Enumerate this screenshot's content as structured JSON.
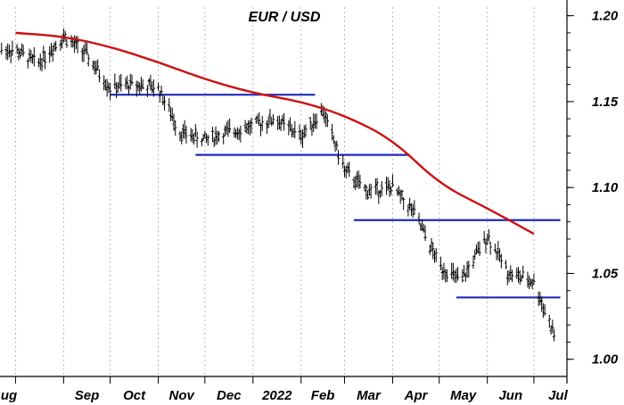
{
  "chart_data": {
    "type": "line",
    "title": "EUR / USD",
    "x_ticks": [
      "Aug",
      "Sep",
      "Oct",
      "Nov",
      "Dec",
      "2022",
      "Feb",
      "Mar",
      "Apr",
      "May",
      "Jun",
      "Jul"
    ],
    "y_ticks": [
      "1.20",
      "1.15",
      "1.10",
      "1.05",
      "1.00"
    ],
    "ylim": [
      0.99,
      1.205
    ],
    "grid": "vertical dashed at month boundaries",
    "series": [
      {
        "style": "ohlc-bars",
        "color": "#000000",
        "x": [
          "2021-08-01",
          "2021-08-15",
          "2021-09-01",
          "2021-09-15",
          "2021-10-01",
          "2021-10-15",
          "2021-11-01",
          "2021-11-15",
          "2021-12-01",
          "2021-12-15",
          "2022-01-01",
          "2022-01-15",
          "2022-02-01",
          "2022-02-15",
          "2022-03-01",
          "2022-03-15",
          "2022-04-01",
          "2022-04-15",
          "2022-05-01",
          "2022-05-15",
          "2022-06-01",
          "2022-06-15",
          "2022-07-01",
          "2022-07-15"
        ],
        "values": [
          1.18,
          1.172,
          1.188,
          1.178,
          1.158,
          1.16,
          1.158,
          1.132,
          1.128,
          1.132,
          1.136,
          1.14,
          1.13,
          1.145,
          1.11,
          1.098,
          1.1,
          1.085,
          1.055,
          1.045,
          1.072,
          1.05,
          1.045,
          1.012
        ]
      },
      {
        "style": "moving-average",
        "color": "#cc1111",
        "x": [
          "2021-08-01",
          "2021-09-01",
          "2021-10-01",
          "2021-11-01",
          "2021-12-01",
          "2022-01-01",
          "2022-02-01",
          "2022-03-01",
          "2022-04-01",
          "2022-05-01",
          "2022-06-01",
          "2022-07-01"
        ],
        "values": [
          1.19,
          1.188,
          1.182,
          1.173,
          1.163,
          1.155,
          1.15,
          1.142,
          1.128,
          1.102,
          1.088,
          1.073
        ]
      }
    ],
    "levels": [
      {
        "color": "#1f2ab8",
        "y": 1.154,
        "x_start": "2021-10-01",
        "x_end": "2022-02-10"
      },
      {
        "color": "#1f2ab8",
        "y": 1.119,
        "x_start": "2021-11-25",
        "x_end": "2022-04-12"
      },
      {
        "color": "#1f2ab8",
        "y": 1.081,
        "x_start": "2022-03-07",
        "x_end": "2022-07-18"
      },
      {
        "color": "#1f2ab8",
        "y": 1.036,
        "x_start": "2022-05-12",
        "x_end": "2022-07-18"
      }
    ]
  }
}
